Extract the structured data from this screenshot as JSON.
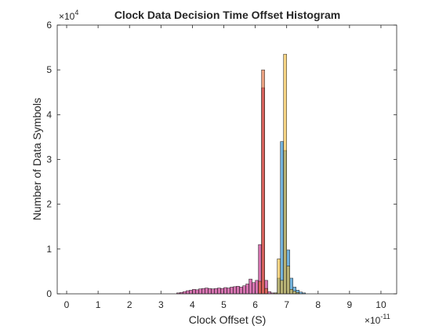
{
  "chart_data": {
    "type": "bar",
    "title": "Clock Data Decision Time Offset Histogram",
    "xlabel": "Clock Offset (S)",
    "ylabel": "Number of Data Symbols",
    "x_exponent_label": "×10",
    "x_exponent_power": "-11",
    "y_exponent_label": "×10",
    "y_exponent_power": "4",
    "xlim": [
      -0.3,
      10.5
    ],
    "ylim": [
      0,
      6
    ],
    "xticks": [
      0,
      1,
      2,
      3,
      4,
      5,
      6,
      7,
      8,
      9,
      10
    ],
    "xtick_labels": [
      "0",
      "1",
      "2",
      "3",
      "4",
      "5",
      "6",
      "7",
      "8",
      "9",
      "10"
    ],
    "yticks": [
      0,
      1,
      2,
      3,
      4,
      5,
      6
    ],
    "ytick_labels": [
      "0",
      "1",
      "2",
      "3",
      "4",
      "5",
      "6"
    ],
    "bin_width": 0.1,
    "grid": false,
    "series": [
      {
        "color": "#b0006e",
        "opacity": 0.55,
        "bins": [
          [
            3.5,
            0.02
          ],
          [
            3.6,
            0.03
          ],
          [
            3.7,
            0.05
          ],
          [
            3.8,
            0.07
          ],
          [
            3.9,
            0.08
          ],
          [
            4.0,
            0.1
          ],
          [
            4.1,
            0.09
          ],
          [
            4.2,
            0.11
          ],
          [
            4.3,
            0.12
          ],
          [
            4.4,
            0.13
          ],
          [
            4.5,
            0.12
          ],
          [
            4.6,
            0.11
          ],
          [
            4.7,
            0.12
          ],
          [
            4.8,
            0.13
          ],
          [
            4.9,
            0.12
          ],
          [
            5.0,
            0.14
          ],
          [
            5.1,
            0.13
          ],
          [
            5.2,
            0.15
          ],
          [
            5.3,
            0.16
          ],
          [
            5.4,
            0.17
          ],
          [
            5.5,
            0.15
          ],
          [
            5.6,
            0.18
          ],
          [
            5.7,
            0.22
          ],
          [
            5.8,
            0.33
          ],
          [
            5.9,
            0.25
          ],
          [
            6.0,
            0.3
          ],
          [
            6.1,
            1.1
          ],
          [
            6.2,
            4.6
          ],
          [
            6.3,
            0.3
          ],
          [
            6.4,
            0.05
          ],
          [
            6.5,
            0.02
          ]
        ]
      },
      {
        "color": "#d95319",
        "opacity": 0.55,
        "bins": [
          [
            6.1,
            0.28
          ],
          [
            6.2,
            5.0
          ],
          [
            6.3,
            0.12
          ]
        ]
      },
      {
        "color": "#0072bd",
        "opacity": 0.55,
        "bins": [
          [
            6.6,
            0.02
          ],
          [
            6.7,
            0.35
          ],
          [
            6.8,
            3.4
          ],
          [
            6.9,
            3.2
          ],
          [
            7.0,
            0.98
          ],
          [
            7.1,
            0.35
          ],
          [
            7.2,
            0.15
          ],
          [
            7.3,
            0.08
          ],
          [
            7.4,
            0.04
          ],
          [
            7.5,
            0.02
          ]
        ]
      },
      {
        "color": "#edb120",
        "opacity": 0.55,
        "bins": [
          [
            6.6,
            0.02
          ],
          [
            6.7,
            0.78
          ],
          [
            6.8,
            0.3
          ],
          [
            6.9,
            5.35
          ],
          [
            7.0,
            0.62
          ],
          [
            7.1,
            0.1
          ],
          [
            7.2,
            0.06
          ],
          [
            7.3,
            0.03
          ]
        ]
      }
    ]
  }
}
